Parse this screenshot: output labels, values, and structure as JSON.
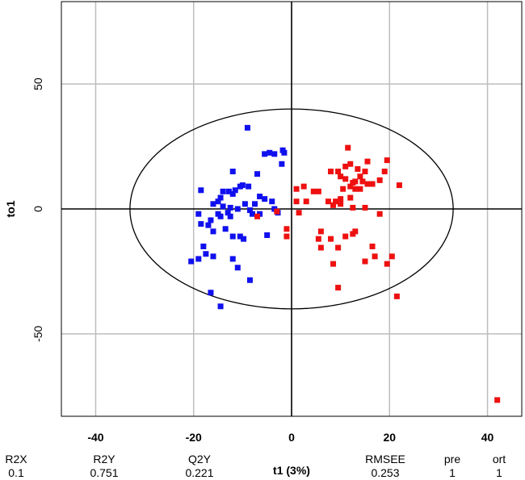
{
  "chart_data": {
    "type": "scatter",
    "xlabel": "t1 (3%)",
    "ylabel": "to1",
    "xlim": [
      -47,
      47
    ],
    "ylim": [
      -83,
      83
    ],
    "x_ticks": [
      -40,
      -20,
      0,
      20,
      40
    ],
    "y_ticks": [
      -50,
      0,
      50
    ],
    "grid": true,
    "ellipse": {
      "cx": 0,
      "cy": 0,
      "rx": 33,
      "ry": 40
    },
    "series": [
      {
        "color": "#1010ee",
        "points": [
          [
            -9,
            32.5
          ],
          [
            -5.5,
            22
          ],
          [
            -4.5,
            22.5
          ],
          [
            -3.5,
            22
          ],
          [
            -1.8,
            23.5
          ],
          [
            -1.5,
            22.5
          ],
          [
            -2,
            18
          ],
          [
            -7,
            14
          ],
          [
            -12,
            15
          ],
          [
            -8.8,
            9
          ],
          [
            -10,
            9.5
          ],
          [
            -10.5,
            9
          ],
          [
            -11.5,
            7.5
          ],
          [
            -12.8,
            7
          ],
          [
            -12,
            6
          ],
          [
            -14,
            7
          ],
          [
            -14.5,
            4.5
          ],
          [
            -15,
            3
          ],
          [
            -16,
            2
          ],
          [
            -14,
            1
          ],
          [
            -12.5,
            0.5
          ],
          [
            -11,
            0
          ],
          [
            -9.5,
            2
          ],
          [
            -7.5,
            2
          ],
          [
            -6.5,
            5
          ],
          [
            -5.5,
            4
          ],
          [
            -4,
            3
          ],
          [
            -3.5,
            0
          ],
          [
            -2.8,
            -1.5
          ],
          [
            -8.5,
            -0.5
          ],
          [
            -8,
            -2
          ],
          [
            -6.5,
            -2
          ],
          [
            -13,
            -1.5
          ],
          [
            -12.5,
            -3
          ],
          [
            -14.5,
            -3
          ],
          [
            -15,
            -2
          ],
          [
            -16.5,
            -4.5
          ],
          [
            -17,
            -6.5
          ],
          [
            -18.5,
            -6
          ],
          [
            -19,
            -2
          ],
          [
            -18.5,
            7.5
          ],
          [
            -16,
            -9
          ],
          [
            -13.5,
            -8
          ],
          [
            -12,
            -11
          ],
          [
            -10.5,
            -11
          ],
          [
            -9.8,
            -12
          ],
          [
            -18,
            -15
          ],
          [
            -17.5,
            -18
          ],
          [
            -20.5,
            -21
          ],
          [
            -19,
            -20
          ],
          [
            -16,
            -19
          ],
          [
            -12,
            -20
          ],
          [
            -11,
            -23.5
          ],
          [
            -8.5,
            -28.5
          ],
          [
            -5,
            -10.5
          ],
          [
            -16.5,
            -33.5
          ],
          [
            -14.5,
            -39
          ]
        ]
      },
      {
        "color": "#ee1010",
        "points": [
          [
            11.5,
            24.5
          ],
          [
            19.5,
            19.5
          ],
          [
            15.5,
            19
          ],
          [
            12,
            18
          ],
          [
            11,
            17
          ],
          [
            13.5,
            16
          ],
          [
            15,
            15
          ],
          [
            19,
            15
          ],
          [
            14,
            13
          ],
          [
            13,
            11
          ],
          [
            12.5,
            10.5
          ],
          [
            14.5,
            11
          ],
          [
            15.5,
            10
          ],
          [
            16.5,
            10
          ],
          [
            11,
            12
          ],
          [
            10,
            13
          ],
          [
            9.5,
            15
          ],
          [
            8,
            15
          ],
          [
            18,
            11.5
          ],
          [
            12,
            9
          ],
          [
            10.5,
            8
          ],
          [
            13,
            8
          ],
          [
            14,
            8
          ],
          [
            22,
            9.5
          ],
          [
            2.5,
            9
          ],
          [
            1,
            8
          ],
          [
            4.5,
            7
          ],
          [
            5.5,
            7
          ],
          [
            7.5,
            3
          ],
          [
            9,
            3
          ],
          [
            10,
            4
          ],
          [
            12,
            4.5
          ],
          [
            10,
            2
          ],
          [
            8.5,
            1.5
          ],
          [
            12.5,
            0.5
          ],
          [
            3,
            3
          ],
          [
            1,
            3
          ],
          [
            15,
            0.5
          ],
          [
            18,
            -2
          ],
          [
            1.5,
            -1.5
          ],
          [
            -3,
            -1
          ],
          [
            -7,
            -3
          ],
          [
            -1,
            -8
          ],
          [
            -1,
            -11
          ],
          [
            6,
            -9
          ],
          [
            11,
            -11
          ],
          [
            13,
            -9
          ],
          [
            8,
            -12
          ],
          [
            5.5,
            -12
          ],
          [
            6,
            -15.5
          ],
          [
            9.5,
            -15.5
          ],
          [
            12.5,
            -10
          ],
          [
            16.5,
            -15
          ],
          [
            17,
            -19
          ],
          [
            8.5,
            -22
          ],
          [
            19.5,
            -22
          ],
          [
            20.5,
            -19
          ],
          [
            15,
            -21
          ],
          [
            9.5,
            -31.5
          ],
          [
            21.5,
            -35
          ],
          [
            42,
            -76.5
          ]
        ]
      }
    ]
  },
  "stats": {
    "headers": [
      "R2X",
      "R2Y",
      "Q2Y",
      "RMSEE",
      "pre",
      "ort"
    ],
    "values": [
      "0.1",
      "0.751",
      "0.221",
      "0.253",
      "1",
      "1"
    ]
  }
}
